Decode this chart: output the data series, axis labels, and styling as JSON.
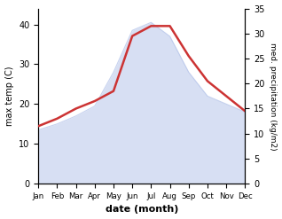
{
  "months": [
    "Jan",
    "Feb",
    "Mar",
    "Apr",
    "May",
    "Jun",
    "Jul",
    "Aug",
    "Sep",
    "Oct",
    "Nov",
    "Dec"
  ],
  "month_x": [
    1,
    2,
    3,
    4,
    5,
    6,
    7,
    8,
    9,
    10,
    11,
    12
  ],
  "temp_area": [
    13.5,
    15.0,
    17.0,
    19.5,
    28.0,
    38.5,
    40.5,
    37.0,
    28.0,
    22.0,
    20.0,
    18.0
  ],
  "precipitation": [
    11.5,
    13.0,
    15.0,
    16.5,
    18.5,
    29.5,
    31.5,
    31.5,
    25.5,
    20.5,
    17.5,
    14.5
  ],
  "temp_color": "#cc3333",
  "precip_color": "#b0c0e8",
  "left_ylabel": "max temp (C)",
  "right_ylabel": "med. precipitation (kg/m2)",
  "xlabel": "date (month)",
  "left_ylim": [
    0,
    44
  ],
  "right_ylim": [
    0,
    35
  ],
  "left_yticks": [
    0,
    10,
    20,
    30,
    40
  ],
  "right_yticks": [
    0,
    5,
    10,
    15,
    20,
    25,
    30,
    35
  ],
  "background_color": "#ffffff"
}
